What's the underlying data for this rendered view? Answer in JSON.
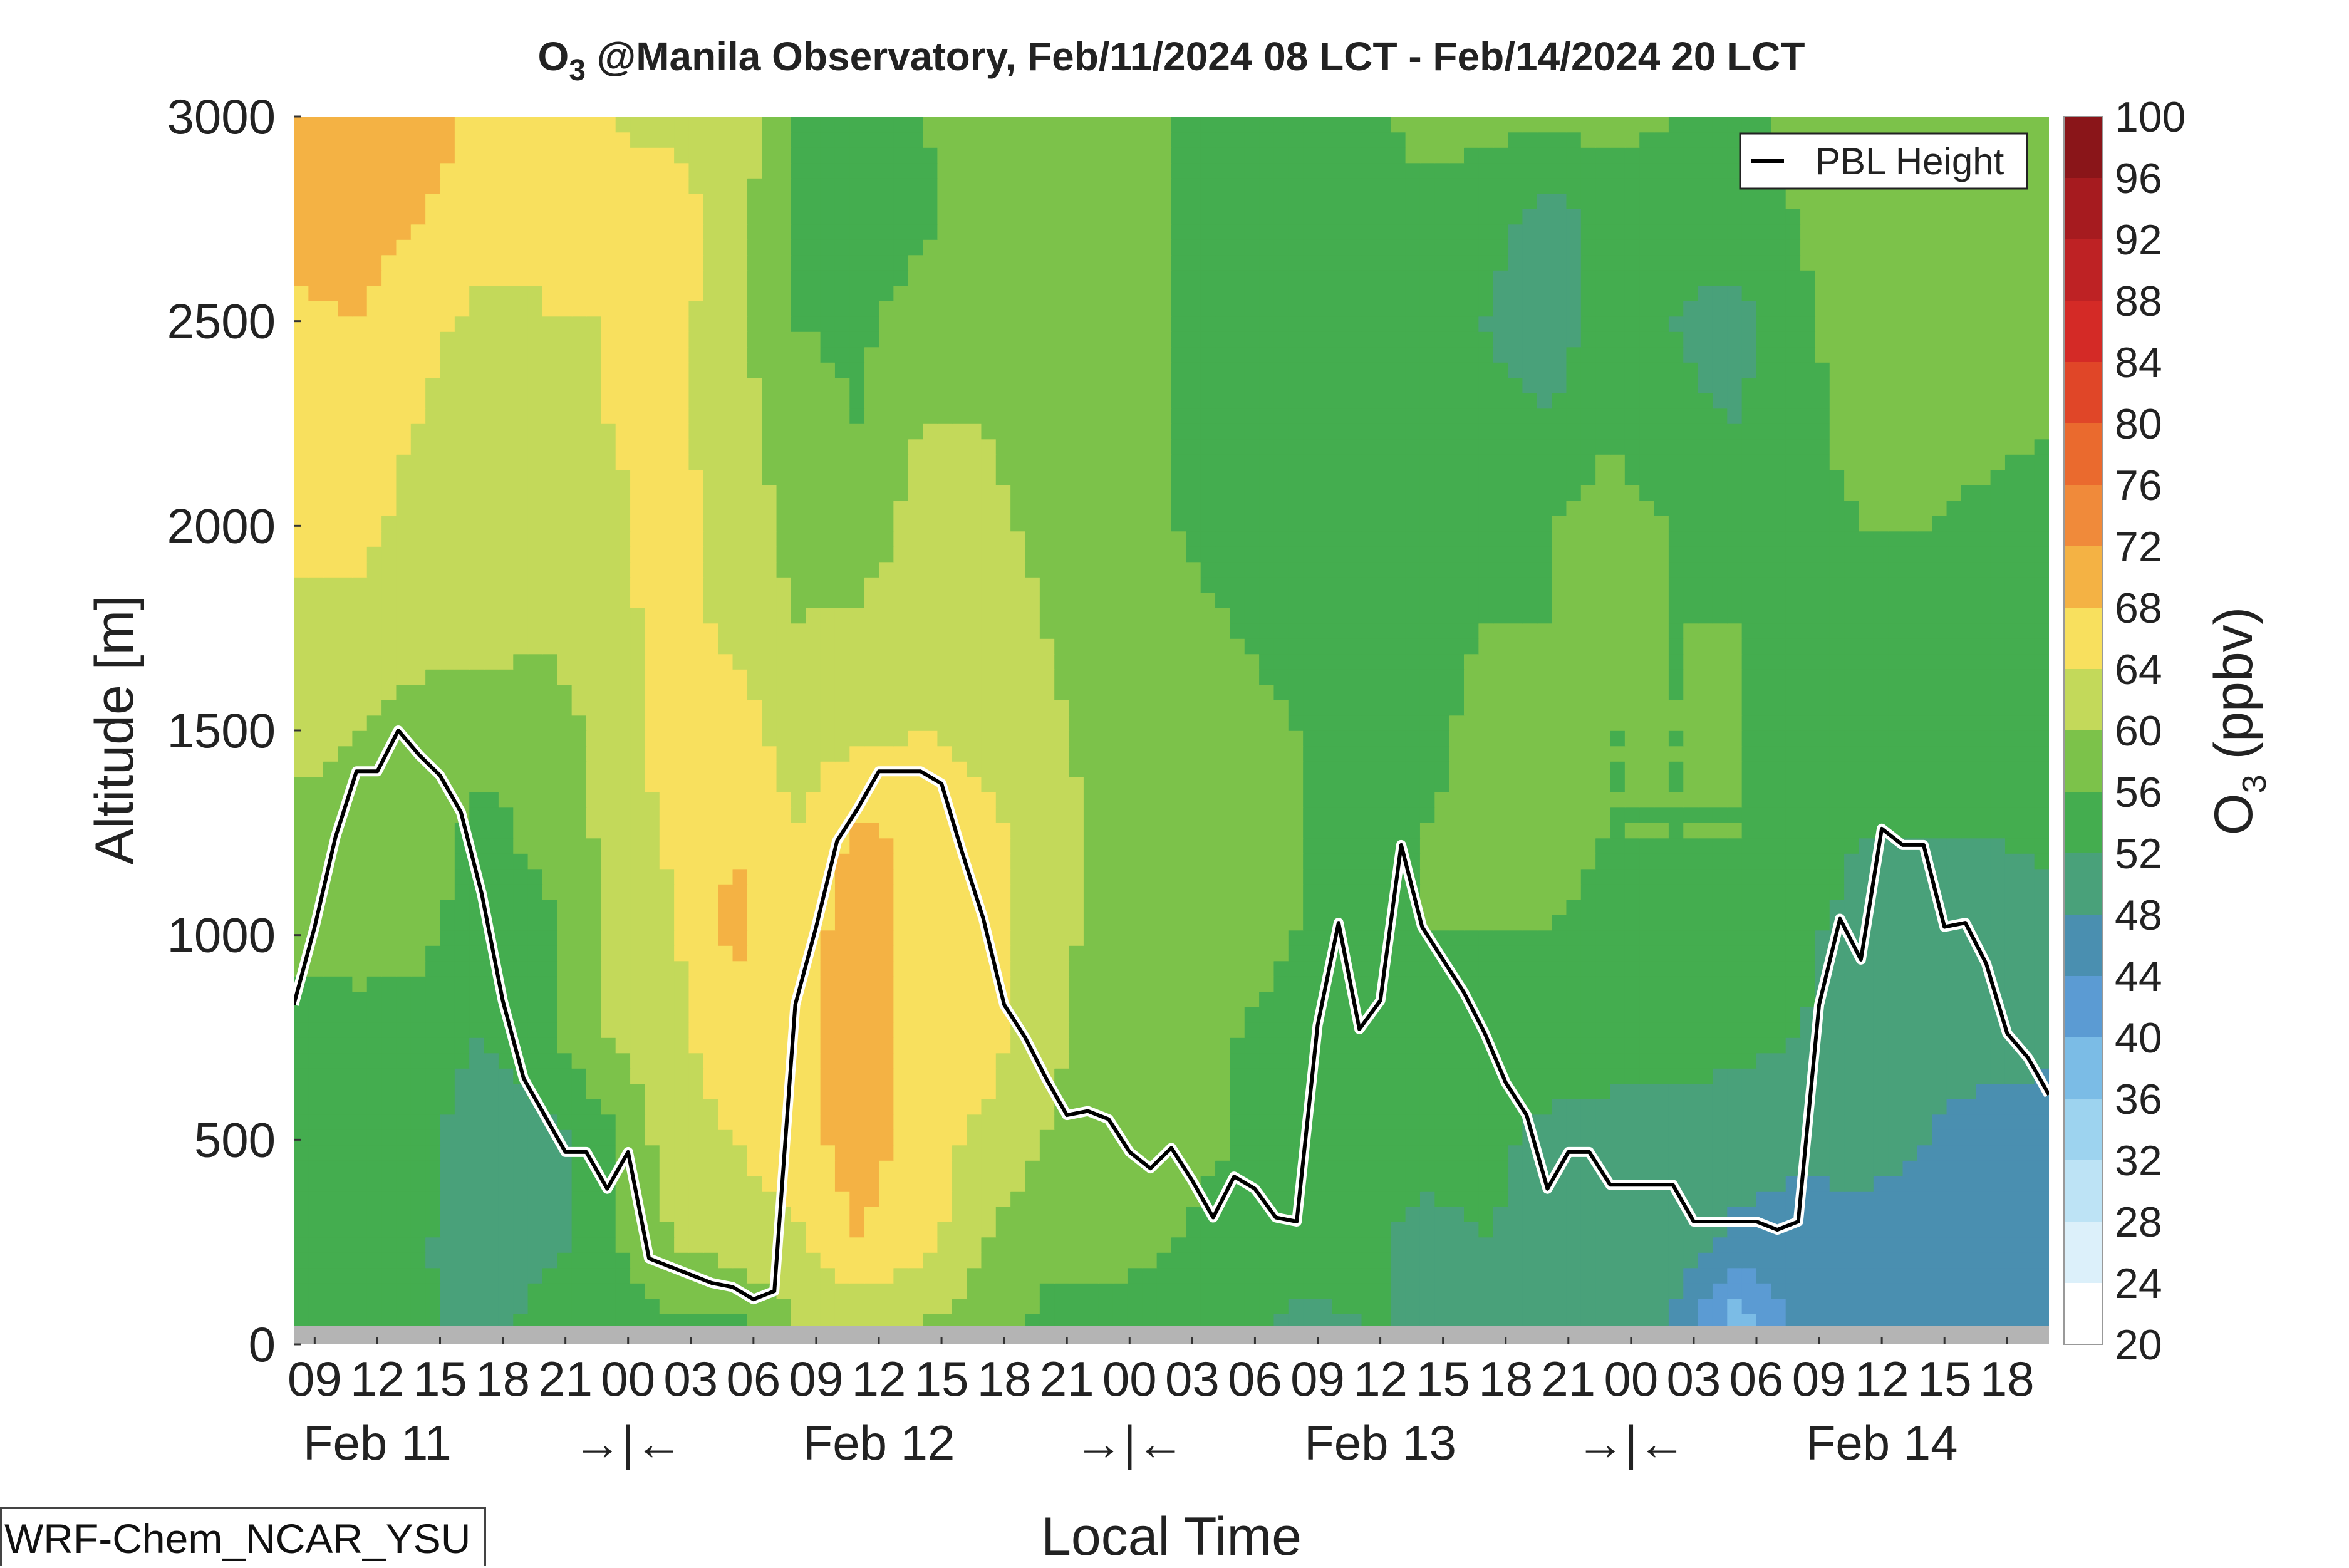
{
  "page": {
    "model_label": "WRF-Chem_NCAR_YSU"
  },
  "chart_data": {
    "type": "heatmap",
    "title_main": "O",
    "title_sub": "3",
    "title_rest": " @Manila Observatory, Feb/11/2024 08 LCT - Feb/14/2024 20 LCT",
    "xlabel": "Local Time",
    "ylabel": "Altitude [m]",
    "ylim": [
      0,
      3000
    ],
    "yticks": [
      0,
      500,
      1000,
      1500,
      2000,
      2500,
      3000
    ],
    "xlim_hours": [
      8,
      92
    ],
    "hour_ticks": [
      {
        "h": 9,
        "label": "09"
      },
      {
        "h": 12,
        "label": "12"
      },
      {
        "h": 15,
        "label": "15"
      },
      {
        "h": 18,
        "label": "18"
      },
      {
        "h": 21,
        "label": "21"
      },
      {
        "h": 24,
        "label": "00"
      },
      {
        "h": 27,
        "label": "03"
      },
      {
        "h": 30,
        "label": "06"
      },
      {
        "h": 33,
        "label": "09"
      },
      {
        "h": 36,
        "label": "12"
      },
      {
        "h": 39,
        "label": "15"
      },
      {
        "h": 42,
        "label": "18"
      },
      {
        "h": 45,
        "label": "21"
      },
      {
        "h": 48,
        "label": "00"
      },
      {
        "h": 51,
        "label": "03"
      },
      {
        "h": 54,
        "label": "06"
      },
      {
        "h": 57,
        "label": "09"
      },
      {
        "h": 60,
        "label": "12"
      },
      {
        "h": 63,
        "label": "15"
      },
      {
        "h": 66,
        "label": "18"
      },
      {
        "h": 69,
        "label": "21"
      },
      {
        "h": 72,
        "label": "00"
      },
      {
        "h": 75,
        "label": "03"
      },
      {
        "h": 78,
        "label": "06"
      },
      {
        "h": 81,
        "label": "09"
      },
      {
        "h": 84,
        "label": "12"
      },
      {
        "h": 87,
        "label": "15"
      },
      {
        "h": 90,
        "label": "18"
      }
    ],
    "day_labels": [
      {
        "h": 12,
        "label": "Feb 11"
      },
      {
        "h": 24,
        "label": "→|←"
      },
      {
        "h": 36,
        "label": "Feb 12"
      },
      {
        "h": 48,
        "label": "→|←"
      },
      {
        "h": 60,
        "label": "Feb 13"
      },
      {
        "h": 72,
        "label": "→|←"
      },
      {
        "h": 84,
        "label": "Feb 14"
      }
    ],
    "colorbar": {
      "label_main": "O",
      "label_sub": "3",
      "label_rest": " (ppbv)",
      "levels": [
        20,
        24,
        28,
        32,
        36,
        40,
        44,
        48,
        52,
        56,
        60,
        64,
        68,
        72,
        76,
        80,
        84,
        88,
        92,
        96,
        100
      ],
      "colors": [
        "#ffffff",
        "#dcf0fa",
        "#bde3f5",
        "#9dd3ef",
        "#7bbce6",
        "#5b9bd3",
        "#4a8fb0",
        "#49a17a",
        "#44ad4f",
        "#7cc24a",
        "#c3d95a",
        "#f8e05e",
        "#f4b244",
        "#f08a3a",
        "#ea6a2e",
        "#e04628",
        "#d42a26",
        "#be2224",
        "#a61b1f",
        "#8a1519"
      ]
    },
    "legend": {
      "entries": [
        "PBL Height"
      ],
      "placement": "top-right"
    },
    "series": [
      {
        "name": "PBL Height",
        "hours": [
          8,
          9,
          10,
          11,
          12,
          13,
          14,
          15,
          16,
          17,
          18,
          19,
          20,
          21,
          22,
          23,
          24,
          25,
          26,
          27,
          28,
          29,
          30,
          31,
          32,
          33,
          34,
          35,
          36,
          37,
          38,
          39,
          40,
          41,
          42,
          43,
          44,
          45,
          46,
          47,
          48,
          49,
          50,
          51,
          52,
          53,
          54,
          55,
          56,
          57,
          58,
          59,
          60,
          61,
          62,
          63,
          64,
          65,
          66,
          67,
          68,
          69,
          70,
          71,
          72,
          73,
          74,
          75,
          76,
          77,
          78,
          79,
          80,
          81,
          82,
          83,
          84,
          85,
          86,
          87,
          88,
          89,
          90,
          91,
          92
        ],
        "values": [
          830,
          1020,
          1240,
          1400,
          1400,
          1500,
          1440,
          1390,
          1300,
          1100,
          840,
          650,
          560,
          470,
          470,
          380,
          470,
          210,
          190,
          170,
          150,
          140,
          110,
          130,
          830,
          1020,
          1230,
          1310,
          1400,
          1400,
          1400,
          1370,
          1200,
          1040,
          830,
          750,
          650,
          560,
          570,
          550,
          470,
          430,
          480,
          400,
          310,
          410,
          380,
          310,
          300,
          780,
          1030,
          770,
          840,
          1220,
          1020,
          940,
          860,
          760,
          640,
          560,
          380,
          470,
          470,
          390,
          390,
          390,
          390,
          300,
          300,
          300,
          300,
          280,
          300,
          830,
          1040,
          940,
          1260,
          1220,
          1220,
          1020,
          1030,
          930,
          760,
          700,
          610
        ]
      }
    ],
    "ozone_field": {
      "hours": [
        8,
        11,
        14,
        17,
        20,
        23,
        26,
        29,
        32,
        35,
        38,
        41,
        44,
        47,
        50,
        53,
        56,
        59,
        62,
        65,
        68,
        71,
        74,
        77,
        80,
        83,
        86,
        89,
        92
      ],
      "altitudes": [
        50,
        250,
        500,
        750,
        1000,
        1250,
        1500,
        1750,
        2000,
        2250,
        2500,
        2750,
        3000
      ],
      "values_ppbv_by_altitude": [
        [
          53,
          53,
          53,
          49,
          55,
          55,
          55,
          55,
          60,
          60,
          60,
          58,
          55,
          55,
          55,
          53,
          51,
          52,
          52,
          50,
          50,
          50,
          48,
          37,
          46,
          47,
          47,
          47,
          47
        ],
        [
          53,
          53,
          53,
          48,
          50,
          55,
          60,
          62,
          63,
          68,
          66,
          60,
          57,
          57,
          56,
          55,
          54,
          53,
          51,
          52,
          51,
          50,
          50,
          47,
          45,
          47,
          47,
          45,
          45
        ],
        [
          53,
          54,
          54,
          49,
          50,
          55,
          62,
          64,
          66,
          70,
          66,
          63,
          60,
          58,
          57,
          56,
          55,
          54,
          53,
          53,
          51,
          51,
          51,
          50,
          50,
          49,
          48,
          47,
          46
        ],
        [
          54,
          55,
          54,
          52,
          55,
          60,
          63,
          66,
          66,
          70,
          67,
          66,
          61,
          58,
          57,
          56,
          55,
          54,
          54,
          54,
          54,
          53,
          53,
          53,
          52,
          50,
          49,
          49,
          49
        ],
        [
          57,
          57,
          57,
          54,
          55,
          60,
          63,
          69,
          66,
          70,
          67,
          66,
          62,
          58,
          57,
          57,
          56,
          55,
          56,
          56,
          56,
          55,
          55,
          55,
          53,
          50,
          50,
          50,
          50
        ],
        [
          58,
          58,
          58,
          55,
          57,
          61,
          65,
          68,
          64,
          69,
          67,
          65,
          62,
          59,
          57,
          57,
          56,
          55,
          56,
          57,
          57,
          56,
          56,
          56,
          55,
          52,
          52,
          52,
          53
        ],
        [
          62,
          60,
          58,
          57,
          57,
          62,
          65,
          66,
          62,
          63,
          64,
          63,
          61,
          58,
          57,
          57,
          56,
          55,
          55,
          57,
          57,
          56,
          56,
          56,
          55,
          54,
          54,
          55,
          55
        ],
        [
          63,
          63,
          62,
          62,
          61,
          62,
          66,
          63,
          60,
          61,
          63,
          62,
          60,
          57,
          57,
          56,
          55,
          55,
          55,
          56,
          56,
          57,
          56,
          56,
          56,
          55,
          55,
          55,
          55
        ],
        [
          65,
          65,
          63,
          62,
          62,
          63,
          66,
          62,
          59,
          57,
          62,
          61,
          59,
          57,
          56,
          55,
          54,
          54,
          54,
          55,
          56,
          57,
          56,
          55,
          55,
          56,
          56,
          55,
          55
        ],
        [
          66,
          65,
          64,
          62,
          62,
          64,
          65,
          62,
          58,
          56,
          60,
          60,
          58,
          57,
          56,
          55,
          54,
          53,
          53,
          54,
          53,
          56,
          53,
          52,
          55,
          57,
          58,
          57,
          56
        ],
        [
          67,
          68,
          65,
          63,
          64,
          64,
          66,
          61,
          56,
          55,
          58,
          59,
          58,
          57,
          56,
          55,
          54,
          54,
          52,
          52,
          48,
          55,
          52,
          50,
          55,
          58,
          58,
          57,
          58
        ],
        [
          70,
          70,
          68,
          66,
          64,
          65,
          66,
          62,
          55,
          53,
          55,
          58,
          57,
          57,
          56,
          55,
          55,
          54,
          55,
          54,
          50,
          54,
          54,
          55,
          56,
          59,
          60,
          58,
          58
        ],
        [
          70,
          70,
          70,
          67,
          65,
          64,
          63,
          63,
          56,
          52,
          56,
          58,
          57,
          56,
          56,
          55,
          55,
          55,
          57,
          57,
          57,
          57,
          56,
          55,
          57,
          59,
          60,
          59,
          59
        ]
      ]
    }
  }
}
